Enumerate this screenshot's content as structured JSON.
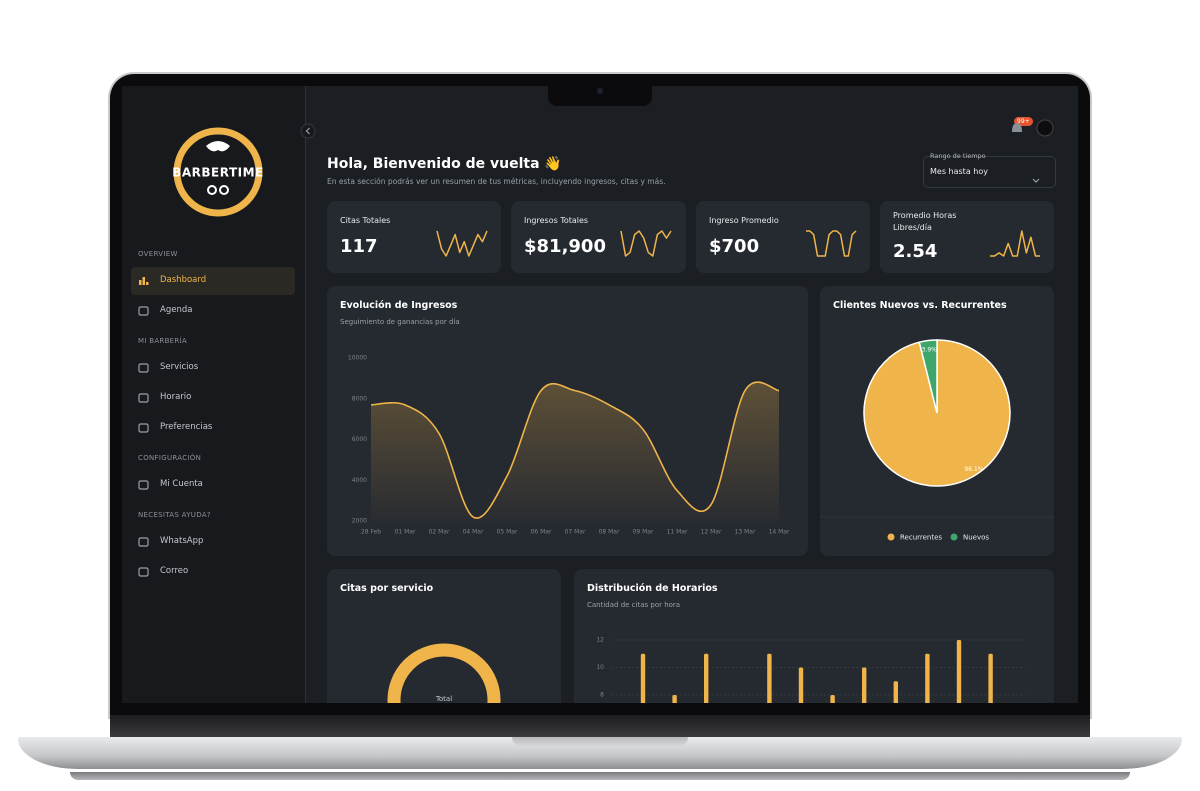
{
  "sidebar": {
    "logo": "BARBERTIME",
    "sections": [
      {
        "title": "OVERVIEW",
        "items": [
          {
            "label": "Dashboard",
            "active": true
          },
          {
            "label": "Agenda"
          }
        ]
      },
      {
        "title": "MI BARBERÍA",
        "items": [
          {
            "label": "Servicios"
          },
          {
            "label": "Horario"
          },
          {
            "label": "Preferencias"
          }
        ]
      },
      {
        "title": "CONFIGURACIÓN",
        "items": [
          {
            "label": "Mi Cuenta"
          }
        ]
      },
      {
        "title": "NECESITAS AYUDA?",
        "items": [
          {
            "label": "WhatsApp"
          },
          {
            "label": "Correo"
          }
        ]
      }
    ]
  },
  "notifications": {
    "badge": "99+"
  },
  "header": {
    "title": "Hola, Bienvenido de vuelta 👋",
    "subtitle": "En esta sección podrás ver un resumen de tus métricas, incluyendo ingresos, citas y más.",
    "range_label": "Rango de tiempo",
    "range_value": "Mes hasta hoy"
  },
  "kpis": [
    {
      "label": "Citas Totales",
      "value": "117",
      "trend": [
        9,
        4,
        2,
        5,
        8,
        3,
        6,
        2,
        5,
        8,
        6,
        9
      ]
    },
    {
      "label": "Ingresos Totales",
      "value": "$81,900",
      "trend": [
        9,
        2,
        3,
        8,
        9,
        7,
        3,
        2,
        8,
        9,
        7,
        9
      ]
    },
    {
      "label": "Ingreso Promedio",
      "value": "$700",
      "trend": [
        9,
        9,
        8,
        2,
        2,
        2,
        8,
        9,
        9,
        8,
        2,
        2,
        8,
        9
      ]
    },
    {
      "label": "Promedio Horas Libres/día",
      "value": "2.54",
      "trend": [
        1,
        1,
        2,
        1,
        5,
        1,
        1,
        9,
        2,
        7,
        1,
        1
      ]
    }
  ],
  "revenue": {
    "type": "line",
    "title": "Evolución de Ingresos",
    "subtitle": "Seguimiento de ganancias por día",
    "categories": [
      "28 Feb",
      "01 Mar",
      "02 Mar",
      "04 Mar",
      "05 Mar",
      "06 Mar",
      "07 Mar",
      "08 Mar",
      "09 Mar",
      "11 Mar",
      "12 Mar",
      "13 Mar",
      "14 Mar"
    ],
    "values": [
      7700,
      7700,
      6300,
      2200,
      4200,
      8400,
      8400,
      7700,
      6500,
      3500,
      2800,
      8400,
      8400
    ],
    "ylim": [
      2000,
      10000
    ],
    "yticks": [
      2000,
      4000,
      6000,
      8000,
      10000
    ],
    "color": "#f0b54a"
  },
  "clients": {
    "type": "pie",
    "title": "Clientes Nuevos vs. Recurrentes",
    "categories": [
      "Recurrentes",
      "Nuevos"
    ],
    "values": [
      96.1,
      3.9
    ],
    "value_labels": [
      "96.1%",
      "3.9%"
    ],
    "colors": [
      "#f0b54a",
      "#3fa66b"
    ]
  },
  "services": {
    "title": "Citas por servicio",
    "center_label": "Total"
  },
  "hours": {
    "type": "bar",
    "title": "Distribución de Horarios",
    "subtitle": "Cantidad de citas por hora",
    "values": [
      11,
      8,
      11,
      0,
      11,
      10,
      8,
      10,
      9,
      11,
      12,
      11
    ],
    "ylim": [
      0,
      12
    ],
    "yticks": [
      8,
      10,
      12
    ],
    "color": "#f0b54a"
  }
}
